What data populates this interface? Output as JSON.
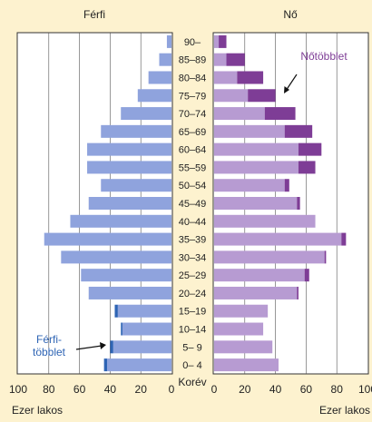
{
  "chart_data": {
    "type": "bar",
    "subtype": "population-pyramid",
    "xlabel": "Ezer lakos",
    "category_axis_label": "Korév",
    "xlim": [
      0,
      100
    ],
    "ticks": [
      "0",
      "20",
      "40",
      "60",
      "80",
      "100"
    ],
    "ticks_left": [
      "100",
      "80",
      "60",
      "40",
      "20",
      "0"
    ],
    "grid": true,
    "categories": [
      "0– 4",
      "5– 9",
      "10–14",
      "15–19",
      "20–24",
      "25–29",
      "30–34",
      "35–39",
      "40–44",
      "45–49",
      "50–54",
      "55–59",
      "60–64",
      "65–69",
      "70–74",
      "75–79",
      "80–84",
      "85–89",
      "90–"
    ],
    "male": {
      "title": "Férfi",
      "color": "#8fa3dd",
      "values": [
        44,
        40,
        33,
        37,
        54,
        59,
        72,
        83,
        66,
        54,
        46,
        55,
        55,
        46,
        33,
        22,
        15,
        8,
        3
      ]
    },
    "female": {
      "title": "Nő",
      "color": "#b79bd2",
      "values": [
        42,
        38,
        32,
        35,
        55,
        62,
        73,
        86,
        66,
        56,
        49,
        66,
        70,
        64,
        53,
        40,
        32,
        20,
        8
      ]
    },
    "surplus": {
      "male_color": "#2e64b4",
      "female_color": "#7e3d96",
      "male_label_lines": [
        "Férfi-",
        "többlet"
      ],
      "female_label": "Nőtöbblet"
    }
  }
}
